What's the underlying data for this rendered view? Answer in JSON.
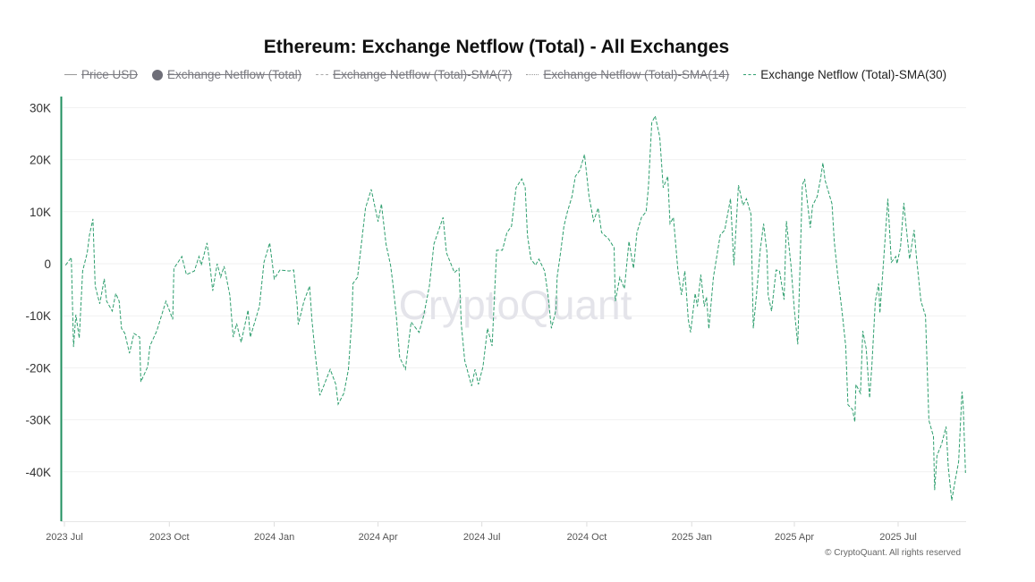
{
  "chart_data": {
    "type": "line",
    "title": "Ethereum: Exchange Netflow (Total) - All Exchanges",
    "x_unit": "days since 2023-07-01",
    "legend": [
      {
        "label": "Price USD",
        "enabled": false
      },
      {
        "label": "Exchange Netflow (Total)",
        "enabled": false
      },
      {
        "label": "Exchange Netflow (Total)-SMA(7)",
        "enabled": false
      },
      {
        "label": "Exchange Netflow (Total)-SMA(14)",
        "enabled": false
      },
      {
        "label": "Exchange Netflow (Total)-SMA(30)",
        "enabled": true
      }
    ],
    "legend_placement": "top-left",
    "x_ticks": [
      {
        "label": "2023 Jul",
        "day": 0
      },
      {
        "label": "2023 Oct",
        "day": 92
      },
      {
        "label": "2024 Jan",
        "day": 184
      },
      {
        "label": "2024 Apr",
        "day": 275
      },
      {
        "label": "2024 Jul",
        "day": 366
      },
      {
        "label": "2024 Oct",
        "day": 458
      },
      {
        "label": "2025 Jan",
        "day": 550
      },
      {
        "label": "2025 Apr",
        "day": 640
      },
      {
        "label": "2025 Jul",
        "day": 731
      }
    ],
    "y_ticks": [
      {
        "label": "30K",
        "value": 30
      },
      {
        "label": "20K",
        "value": 20
      },
      {
        "label": "10K",
        "value": 10
      },
      {
        "label": "0",
        "value": 0
      },
      {
        "label": "-10K",
        "value": -10
      },
      {
        "label": "-20K",
        "value": -20
      },
      {
        "label": "-30K",
        "value": -30
      },
      {
        "label": "-40K",
        "value": -40
      }
    ],
    "ylim": [
      -49.5,
      31.8
    ],
    "xlim": [
      -3,
      794
    ],
    "y_unit": "thousand ETH",
    "grid": true,
    "color": "#2e9e6e",
    "series": [
      {
        "name": "Exchange Netflow (Total)-SMA(30)",
        "x": [
          1,
          6,
          8,
          10,
          13,
          16,
          20,
          22,
          25,
          27,
          31,
          35,
          37,
          42,
          45,
          48,
          50,
          53,
          57,
          61,
          66,
          67,
          73,
          75,
          81,
          89,
          95,
          96,
          103,
          107,
          114,
          118,
          120,
          125,
          127,
          130,
          134,
          137,
          140,
          145,
          148,
          151,
          155,
          161,
          163,
          171,
          175,
          180,
          184,
          189,
          197,
          201,
          204,
          205,
          210,
          215,
          217,
          220,
          224,
          227,
          233,
          238,
          240,
          245,
          249,
          252,
          253,
          257,
          260,
          264,
          269,
          275,
          278,
          282,
          286,
          288,
          291,
          294,
          299,
          304,
          311,
          315,
          320,
          324,
          332,
          335,
          342,
          346,
          348,
          351,
          357,
          360,
          363,
          367,
          371,
          375,
          379,
          384,
          388,
          392,
          396,
          401,
          404,
          406,
          409,
          413,
          416,
          421,
          424,
          427,
          431,
          432,
          435,
          438,
          441,
          445,
          448,
          452,
          456,
          460,
          464,
          468,
          471,
          477,
          482,
          483,
          487,
          491,
          495,
          499,
          502,
          506,
          510,
          512,
          515,
          518,
          522,
          525,
          529,
          531,
          534,
          538,
          541,
          544,
          547,
          549,
          553,
          555,
          558,
          561,
          563,
          565,
          569,
          575,
          579,
          584,
          587,
          591,
          595,
          598,
          602,
          604,
          607,
          610,
          613,
          616,
          617,
          620,
          624,
          627,
          631,
          633,
          637,
          640,
          643,
          647,
          649,
          652,
          654,
          656,
          660,
          663,
          665,
          667,
          673,
          675,
          678,
          682,
          685,
          687,
          691,
          693,
          694,
          698,
          700,
          703,
          706,
          708,
          711,
          714,
          715,
          718,
          722,
          725,
          729,
          730,
          733,
          736,
          738,
          741,
          745,
          747,
          751,
          755,
          758,
          762,
          763,
          765,
          769,
          773,
          775,
          778,
          781,
          784,
          787,
          788,
          790
        ],
        "values": [
          -0.3,
          1.2,
          -16.0,
          -9.8,
          -14.3,
          -1.4,
          2.1,
          5.5,
          8.6,
          -4.3,
          -7.7,
          -2.9,
          -7.2,
          -9.1,
          -5.7,
          -7.2,
          -12.4,
          -13.4,
          -17.2,
          -13.4,
          -14.1,
          -22.7,
          -19.8,
          -15.8,
          -12.9,
          -7.2,
          -10.7,
          -0.9,
          1.4,
          -2.1,
          -1.4,
          1.4,
          -0.3,
          4.0,
          0.9,
          -5.2,
          0,
          -2.6,
          -0.5,
          -6.0,
          -14.1,
          -11.5,
          -15.1,
          -8.9,
          -14.1,
          -8.2,
          0.3,
          4.0,
          -2.9,
          -1.2,
          -1.4,
          -1.2,
          -7.7,
          -11.7,
          -7.2,
          -4.3,
          -10.8,
          -17.5,
          -25.3,
          -23.7,
          -20.3,
          -23.2,
          -27.0,
          -24.9,
          -20.3,
          -10.7,
          -3.8,
          -2.6,
          3.1,
          10.7,
          14.3,
          8.1,
          11.5,
          3.8,
          -0.3,
          -3.8,
          -10.0,
          -18.0,
          -20.3,
          -11.2,
          -13.2,
          -10.0,
          -4.3,
          3.8,
          8.9,
          2.1,
          -1.7,
          -0.9,
          -11.7,
          -18.6,
          -23.5,
          -20.3,
          -23.2,
          -19.8,
          -12.4,
          -15.8,
          2.6,
          2.6,
          6.0,
          7.2,
          14.6,
          16.3,
          14.6,
          5.5,
          0.9,
          -0.3,
          0.9,
          -1.4,
          -6.0,
          -12.4,
          -8.9,
          -2.6,
          2.1,
          7.2,
          10.0,
          12.9,
          16.8,
          18.0,
          21.0,
          12.9,
          8.2,
          10.7,
          6.0,
          4.8,
          3.1,
          -7.2,
          -2.6,
          -4.8,
          4.3,
          -0.9,
          6.0,
          8.9,
          10.0,
          14.6,
          27.1,
          28.4,
          24.4,
          14.6,
          16.8,
          7.7,
          8.9,
          -1.4,
          -6.0,
          -1.4,
          -10.7,
          -13.2,
          -5.7,
          -8.2,
          -2.1,
          -8.2,
          -6.4,
          -12.5,
          -2.6,
          5.5,
          6.5,
          12.5,
          -0.3,
          15.1,
          11.2,
          12.5,
          9.5,
          -12.4,
          -5.5,
          2.6,
          7.7,
          2.1,
          -6.0,
          -9.1,
          -1.2,
          -1.4,
          -6.9,
          8.2,
          -0.3,
          -8.9,
          -15.5,
          15.1,
          16.3,
          10.7,
          6.9,
          11.2,
          12.9,
          16.3,
          19.4,
          16.0,
          11.5,
          4.3,
          -2.1,
          -9.5,
          -15.8,
          -27.1,
          -28.0,
          -30.4,
          -23.2,
          -24.9,
          -12.9,
          -16.3,
          -25.8,
          -19.4,
          -7.2,
          -3.8,
          -9.5,
          -0.3,
          12.5,
          0.3,
          1.4,
          0,
          3.1,
          11.7,
          7.2,
          0.9,
          6.5,
          1.4,
          -7.2,
          -10.0,
          -30.1,
          -33.2,
          -43.5,
          -36.9,
          -34.7,
          -31.3,
          -39.2,
          -45.5,
          -41.6,
          -38.1,
          -24.6,
          -27.1,
          -40.2
        ]
      }
    ],
    "watermark": "CryptoQuant",
    "copyright": "© CryptoQuant. All rights reserved"
  }
}
